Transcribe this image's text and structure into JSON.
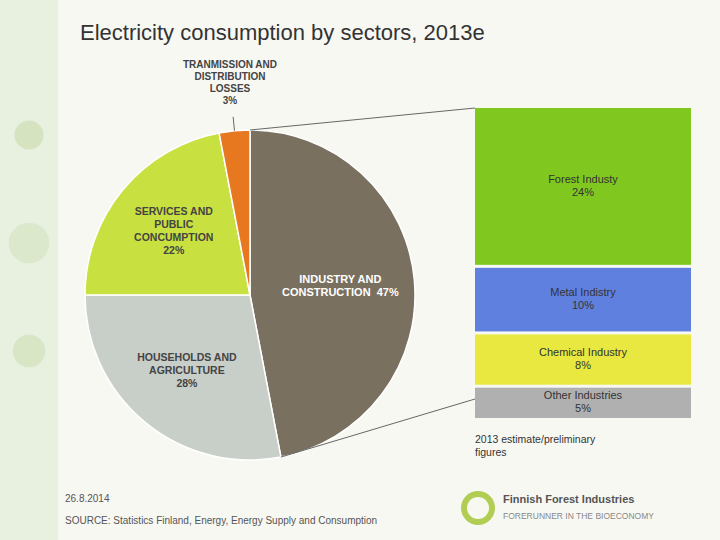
{
  "chart_data": [
    {
      "type": "pie",
      "title": "Electricity consumption by sectors, 2013e",
      "categories": [
        "INDUSTRY AND\nCONSTRUCTION  47%",
        "HOUSEHOLDS AND\nAGRICULTURE\n28%",
        "SERVICES AND\nPUBLIC\nCONCUMPTION\n22%",
        "TRANMISSION AND\nDISTRIBUTION\nLOSSES\n3%"
      ],
      "values": [
        47,
        28,
        22,
        3
      ],
      "colors": [
        "#7a7060",
        "#c8cec8",
        "#c8e040",
        "#e87820"
      ],
      "annotations": [
        "2013 estimate/preliminary\nfigures",
        "26.8.2014",
        "SOURCE: Statistics Finland, Energy, Energy Supply and Consumption",
        "Finnish Forest Industries",
        "FORERUNNER IN THE BIOECONOMY"
      ]
    },
    {
      "type": "bar",
      "stacked": true,
      "tick_labels": false,
      "categories": [
        "Forest Industy\n24%",
        "Metal Indistry\n10%",
        "Chemical Industry\n8%",
        "Other Industries\n5%"
      ],
      "values": [
        24,
        10,
        8,
        5
      ],
      "colors": [
        "#80c820",
        "#6080e0",
        "#e8e840",
        "#b0b0b0"
      ]
    }
  ]
}
